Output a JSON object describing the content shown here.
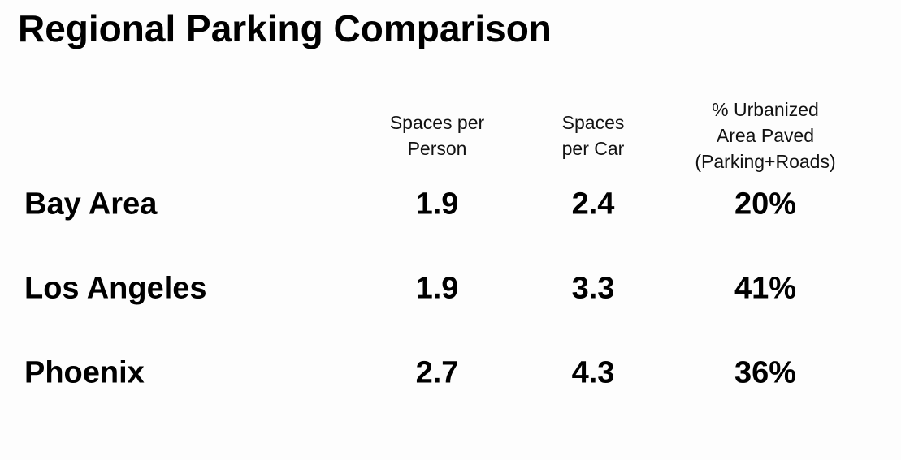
{
  "title": "Regional Parking Comparison",
  "table": {
    "headers": [
      [
        "Spaces per",
        "Person"
      ],
      [
        "Spaces",
        "per Car"
      ],
      [
        "% Urbanized",
        "Area Paved",
        "(Parking+Roads)"
      ]
    ],
    "rows": [
      [
        "Bay Area",
        "1.9",
        "2.4",
        "20%"
      ],
      [
        "Los Angeles",
        "1.9",
        "3.3",
        "41%"
      ],
      [
        "Phoenix",
        "2.7",
        "4.3",
        "36%"
      ]
    ]
  }
}
